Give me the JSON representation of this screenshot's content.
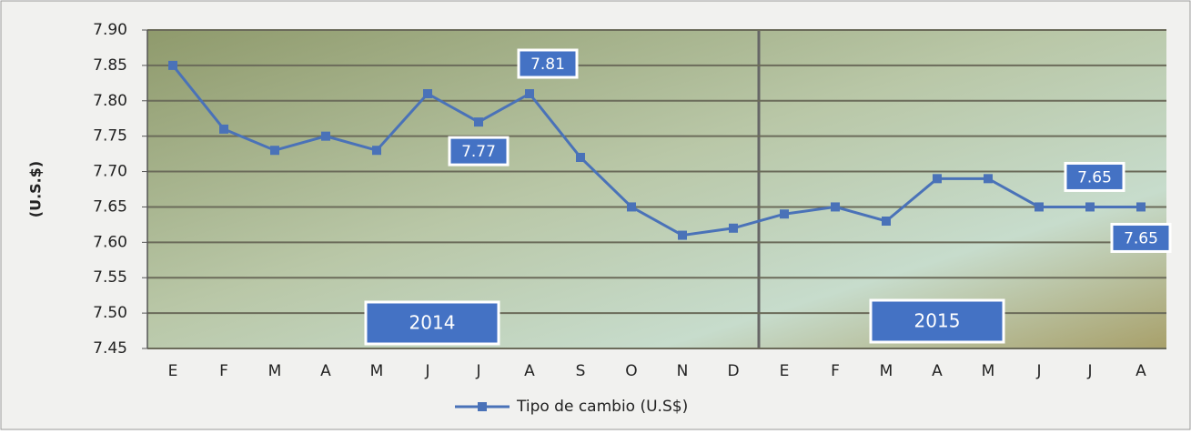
{
  "chart_data": {
    "type": "line",
    "y_label": "(U.S.$)",
    "categories": [
      "E",
      "F",
      "M",
      "A",
      "M",
      "J",
      "J",
      "A",
      "S",
      "O",
      "N",
      "D",
      "E",
      "F",
      "M",
      "A",
      "M",
      "J",
      "J",
      "A"
    ],
    "series": [
      {
        "name": "Tipo de cambio (U.S$)",
        "color": "#4a72b8",
        "values": [
          7.85,
          7.76,
          7.73,
          7.75,
          7.73,
          7.81,
          7.77,
          7.81,
          7.72,
          7.65,
          7.61,
          7.62,
          7.64,
          7.65,
          7.63,
          7.69,
          7.69,
          7.65,
          7.65,
          7.65
        ],
        "value_labels": [
          null,
          null,
          null,
          null,
          null,
          null,
          "7.77",
          "7.81",
          null,
          null,
          null,
          null,
          null,
          null,
          null,
          null,
          null,
          null,
          "7.65",
          "7.65"
        ]
      }
    ],
    "ylim": [
      7.45,
      7.9
    ],
    "yticks": [
      7.45,
      {
        "value": 7.5,
        "label": "7.50"
      },
      7.55,
      {
        "value": 7.6,
        "label": "7.60"
      },
      7.65,
      {
        "value": 7.7,
        "label": "7.70"
      },
      7.75,
      {
        "value": 7.8,
        "label": "7.80"
      },
      7.85,
      {
        "value": 7.9,
        "label": "7.90"
      }
    ],
    "grid": true,
    "annotations": [
      "2014",
      "2015"
    ]
  }
}
